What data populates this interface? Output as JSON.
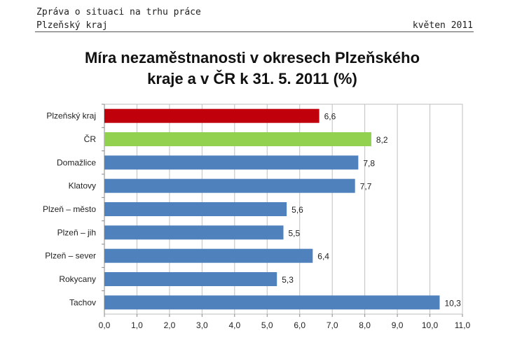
{
  "header": {
    "line1": "Zpráva o situaci na trhu práce",
    "line2": "Plzeňský kraj",
    "date": "květen 2011"
  },
  "chart_data": {
    "type": "bar",
    "orientation": "horizontal",
    "title_line1": "Míra nezaměstnanosti v okresech Plzeňského",
    "title_line2": "kraje a v ČR k 31. 5. 2011 (%)",
    "categories": [
      "Plzeňský kraj",
      "ČR",
      "Domažlice",
      "Klatovy",
      "Plzeň – město",
      "Plzeň – jih",
      "Plzeň – sever",
      "Rokycany",
      "Tachov"
    ],
    "values": [
      6.6,
      8.2,
      7.8,
      7.7,
      5.6,
      5.5,
      6.4,
      5.3,
      10.3
    ],
    "value_labels": [
      "6,6",
      "8,2",
      "7,8",
      "7,7",
      "5,6",
      "5,5",
      "6,4",
      "5,3",
      "10,3"
    ],
    "bar_colors": [
      "#c0000b",
      "#92d050",
      "#4f81bd",
      "#4f81bd",
      "#4f81bd",
      "#4f81bd",
      "#4f81bd",
      "#4f81bd",
      "#4f81bd"
    ],
    "xlim": [
      0,
      11
    ],
    "xticks": [
      0,
      1,
      2,
      3,
      4,
      5,
      6,
      7,
      8,
      9,
      10,
      11
    ],
    "xtick_labels": [
      "0,0",
      "1,0",
      "2,0",
      "3,0",
      "4,0",
      "5,0",
      "6,0",
      "7,0",
      "8,0",
      "9,0",
      "10,0",
      "11,0"
    ],
    "grid": true,
    "xlabel": "",
    "ylabel": ""
  }
}
